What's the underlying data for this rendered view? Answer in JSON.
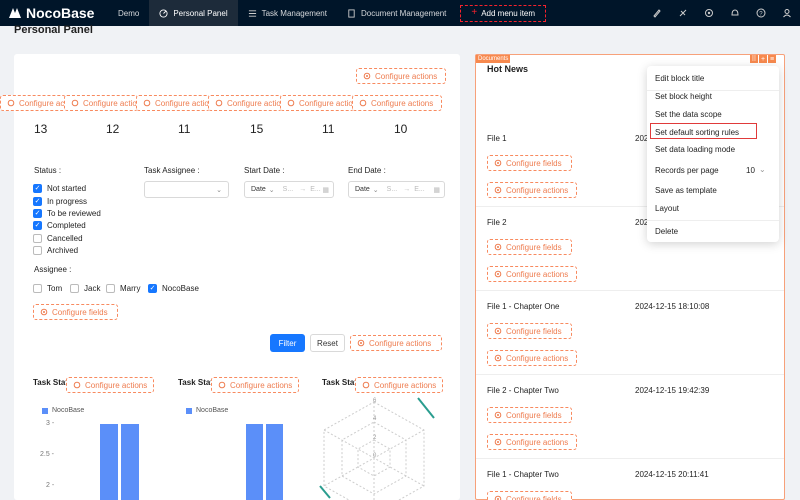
{
  "app": {
    "logo_text": "NocoBase"
  },
  "nav": {
    "items": [
      {
        "label": "Demo",
        "icon": "none"
      },
      {
        "label": "Personal Panel",
        "icon": "dashboard-icon",
        "active": true
      },
      {
        "label": "Task Management",
        "icon": "list-icon"
      },
      {
        "label": "Document Management",
        "icon": "file-icon"
      }
    ],
    "add_menu": "Add menu item"
  },
  "page": {
    "title": "Personal Panel"
  },
  "configure_actions": "Configure actions",
  "configure_fields": "Configure fields",
  "stats": [
    "13",
    "12",
    "11",
    "15",
    "11",
    "10"
  ],
  "filter": {
    "status_label": "Status :",
    "status_options": [
      {
        "label": "Not started",
        "checked": true
      },
      {
        "label": "In progress",
        "checked": true
      },
      {
        "label": "To be reviewed",
        "checked": true
      },
      {
        "label": "Completed",
        "checked": true
      },
      {
        "label": "Cancelled",
        "checked": false
      },
      {
        "label": "Archived",
        "checked": false
      }
    ],
    "task_assignee_label": "Task Assignee :",
    "start_date_label": "Start Date :",
    "end_date_label": "End Date :",
    "date_mode": "Date",
    "range_start": "S...",
    "range_end": "E...",
    "assignee_label": "Assignee :",
    "assignees": [
      {
        "label": "Tom",
        "checked": false
      },
      {
        "label": "Jack",
        "checked": false
      },
      {
        "label": "Marry",
        "checked": false
      },
      {
        "label": "NocoBase",
        "checked": true
      }
    ],
    "filter_button": "Filter",
    "reset_button": "Reset"
  },
  "charts": [
    {
      "title": "Task Stat",
      "legend": "NocoBase",
      "y_ticks": [
        "3 -",
        "2.5 -",
        "2 -"
      ]
    },
    {
      "title": "Task Stat",
      "legend": "NocoBase"
    },
    {
      "title": "Task Stat",
      "radar_ticks": [
        "6",
        "4",
        "2",
        "0"
      ]
    }
  ],
  "chart_data": [
    {
      "type": "bar",
      "series": [
        {
          "name": "NocoBase",
          "values": [
            3,
            3
          ]
        }
      ],
      "ylim": [
        2,
        3
      ]
    },
    {
      "type": "bar",
      "series": [
        {
          "name": "NocoBase",
          "values": [
            3,
            3
          ]
        }
      ]
    },
    {
      "type": "radar"
    }
  ],
  "hot_news": {
    "tag": "Documents",
    "title": "Hot News",
    "files": [
      {
        "name": "File 1",
        "date": "2024"
      },
      {
        "name": "File 2",
        "date": "2024"
      },
      {
        "name": "File 1 - Chapter One",
        "date": "2024-12-15 18:10:08"
      },
      {
        "name": "File 2 - Chapter Two",
        "date": "2024-12-15 19:42:39"
      },
      {
        "name": "File 1 - Chapter Two",
        "date": "2024-12-15 20:11:41"
      }
    ]
  },
  "settings_menu": {
    "items": [
      "Edit block title",
      "Set block height",
      "Set the data scope",
      "Set default sorting rules",
      "Set data loading mode",
      "Records per page",
      "Save as template",
      "Layout",
      "Delete"
    ],
    "records_per_page_value": "10"
  },
  "colors": {
    "accent": "#1677ff",
    "nav_bg": "#001529",
    "config_orange": "#ee7c4f",
    "bar": "#5b8ff9"
  }
}
